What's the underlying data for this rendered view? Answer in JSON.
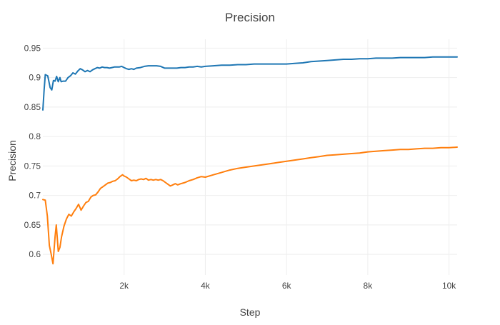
{
  "chart_data": {
    "type": "line",
    "title": "Precision",
    "xlabel": "Step",
    "ylabel": "Precision",
    "xlim": [
      0,
      10200
    ],
    "ylim": [
      0.565,
      0.965
    ],
    "x_ticks": [
      2000,
      4000,
      6000,
      8000,
      10000
    ],
    "x_tick_labels": [
      "2k",
      "4k",
      "6k",
      "8k",
      "10k"
    ],
    "y_ticks": [
      0.6,
      0.65,
      0.7,
      0.75,
      0.8,
      0.85,
      0.9,
      0.95
    ],
    "y_tick_labels": [
      "0.6",
      "0.65",
      "0.7",
      "0.75",
      "0.8",
      "0.85",
      "0.9",
      "0.95"
    ],
    "grid": true,
    "legend": "none",
    "series": [
      {
        "color": "#1f77b4",
        "x": [
          0,
          30,
          60,
          120,
          180,
          220,
          260,
          300,
          340,
          380,
          420,
          450,
          500,
          560,
          620,
          680,
          740,
          800,
          860,
          920,
          980,
          1040,
          1100,
          1160,
          1220,
          1280,
          1340,
          1400,
          1460,
          1520,
          1580,
          1640,
          1700,
          1760,
          1820,
          1880,
          1940,
          2000,
          2060,
          2120,
          2180,
          2240,
          2300,
          2400,
          2500,
          2600,
          2700,
          2800,
          2900,
          3000,
          3100,
          3200,
          3300,
          3400,
          3500,
          3600,
          3700,
          3800,
          3900,
          4000,
          4200,
          4400,
          4600,
          4800,
          5000,
          5200,
          5400,
          5600,
          5800,
          6000,
          6200,
          6400,
          6600,
          6800,
          7000,
          7200,
          7400,
          7600,
          7800,
          8000,
          8200,
          8400,
          8600,
          8800,
          9000,
          9200,
          9400,
          9600,
          9800,
          10000,
          10200
        ],
        "y": [
          0.845,
          0.878,
          0.905,
          0.903,
          0.883,
          0.879,
          0.895,
          0.894,
          0.902,
          0.893,
          0.9,
          0.893,
          0.894,
          0.894,
          0.9,
          0.903,
          0.908,
          0.906,
          0.911,
          0.915,
          0.913,
          0.91,
          0.912,
          0.91,
          0.913,
          0.915,
          0.917,
          0.916,
          0.918,
          0.917,
          0.917,
          0.916,
          0.917,
          0.918,
          0.918,
          0.918,
          0.919,
          0.917,
          0.915,
          0.914,
          0.915,
          0.914,
          0.916,
          0.917,
          0.919,
          0.92,
          0.92,
          0.92,
          0.919,
          0.916,
          0.916,
          0.916,
          0.916,
          0.917,
          0.917,
          0.918,
          0.918,
          0.919,
          0.918,
          0.919,
          0.92,
          0.921,
          0.921,
          0.922,
          0.922,
          0.923,
          0.923,
          0.923,
          0.923,
          0.923,
          0.924,
          0.925,
          0.927,
          0.928,
          0.929,
          0.93,
          0.931,
          0.931,
          0.932,
          0.932,
          0.933,
          0.933,
          0.933,
          0.934,
          0.934,
          0.934,
          0.934,
          0.935,
          0.935,
          0.935,
          0.935
        ]
      },
      {
        "color": "#ff7f0e",
        "x": [
          0,
          60,
          110,
          160,
          200,
          250,
          300,
          330,
          380,
          420,
          460,
          520,
          580,
          640,
          700,
          760,
          820,
          880,
          940,
          1000,
          1060,
          1120,
          1180,
          1240,
          1300,
          1360,
          1420,
          1480,
          1540,
          1600,
          1660,
          1720,
          1780,
          1840,
          1900,
          1960,
          2000,
          2060,
          2120,
          2180,
          2240,
          2300,
          2360,
          2420,
          2480,
          2540,
          2600,
          2660,
          2720,
          2780,
          2840,
          2900,
          2960,
          3020,
          3080,
          3140,
          3200,
          3260,
          3320,
          3400,
          3500,
          3600,
          3700,
          3800,
          3900,
          4000,
          4200,
          4400,
          4600,
          4800,
          5000,
          5200,
          5400,
          5600,
          5800,
          6000,
          6200,
          6400,
          6600,
          6800,
          7000,
          7200,
          7400,
          7600,
          7800,
          8000,
          8200,
          8400,
          8600,
          8800,
          9000,
          9200,
          9400,
          9600,
          9800,
          10000,
          10200
        ],
        "y": [
          0.693,
          0.692,
          0.665,
          0.615,
          0.602,
          0.584,
          0.63,
          0.65,
          0.605,
          0.612,
          0.63,
          0.648,
          0.66,
          0.668,
          0.665,
          0.672,
          0.678,
          0.685,
          0.675,
          0.682,
          0.688,
          0.69,
          0.697,
          0.7,
          0.701,
          0.706,
          0.712,
          0.715,
          0.718,
          0.721,
          0.722,
          0.724,
          0.725,
          0.728,
          0.732,
          0.735,
          0.733,
          0.731,
          0.728,
          0.725,
          0.726,
          0.725,
          0.727,
          0.728,
          0.727,
          0.729,
          0.726,
          0.727,
          0.726,
          0.727,
          0.726,
          0.727,
          0.725,
          0.722,
          0.719,
          0.716,
          0.718,
          0.72,
          0.718,
          0.72,
          0.722,
          0.725,
          0.727,
          0.73,
          0.732,
          0.731,
          0.735,
          0.739,
          0.743,
          0.746,
          0.748,
          0.75,
          0.752,
          0.754,
          0.756,
          0.758,
          0.76,
          0.762,
          0.764,
          0.766,
          0.768,
          0.769,
          0.77,
          0.771,
          0.772,
          0.774,
          0.775,
          0.776,
          0.777,
          0.778,
          0.778,
          0.779,
          0.78,
          0.78,
          0.781,
          0.781,
          0.782
        ]
      }
    ]
  }
}
